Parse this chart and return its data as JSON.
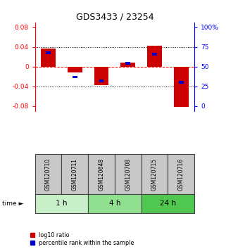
{
  "title": "GDS3433 / 23254",
  "samples": [
    "GSM120710",
    "GSM120711",
    "GSM120648",
    "GSM120708",
    "GSM120715",
    "GSM120716"
  ],
  "log10_ratio": [
    0.037,
    -0.012,
    -0.038,
    0.008,
    0.043,
    -0.082
  ],
  "percentile_rank": [
    0.68,
    0.37,
    0.32,
    0.54,
    0.66,
    0.3
  ],
  "groups": [
    {
      "label": "1 h",
      "indices": [
        0,
        1
      ],
      "color": "#c8f0c8"
    },
    {
      "label": "4 h",
      "indices": [
        2,
        3
      ],
      "color": "#90e090"
    },
    {
      "label": "24 h",
      "indices": [
        4,
        5
      ],
      "color": "#50c850"
    }
  ],
  "ylim": [
    -0.09,
    0.09
  ],
  "yticks_left": [
    -0.08,
    -0.04,
    0,
    0.04,
    0.08
  ],
  "yticks_right_labels": [
    "0",
    "25",
    "50",
    "75",
    "100%"
  ],
  "yticks_right_pos": [
    -0.08,
    -0.04,
    0.0,
    0.04,
    0.08
  ],
  "bar_color_red": "#cc0000",
  "bar_color_blue": "#0000cc",
  "bar_width": 0.55,
  "percentile_bar_width": 0.18,
  "dotted_lines": [
    -0.04,
    0.04
  ],
  "zero_line_color": "red",
  "legend_red": "log10 ratio",
  "legend_blue": "percentile rank within the sample",
  "sample_bg_color": "#c8c8c8",
  "sample_border_color": "#444444",
  "light_green": "#c8f0c8",
  "mid_green": "#90e090",
  "dark_green": "#50c850"
}
